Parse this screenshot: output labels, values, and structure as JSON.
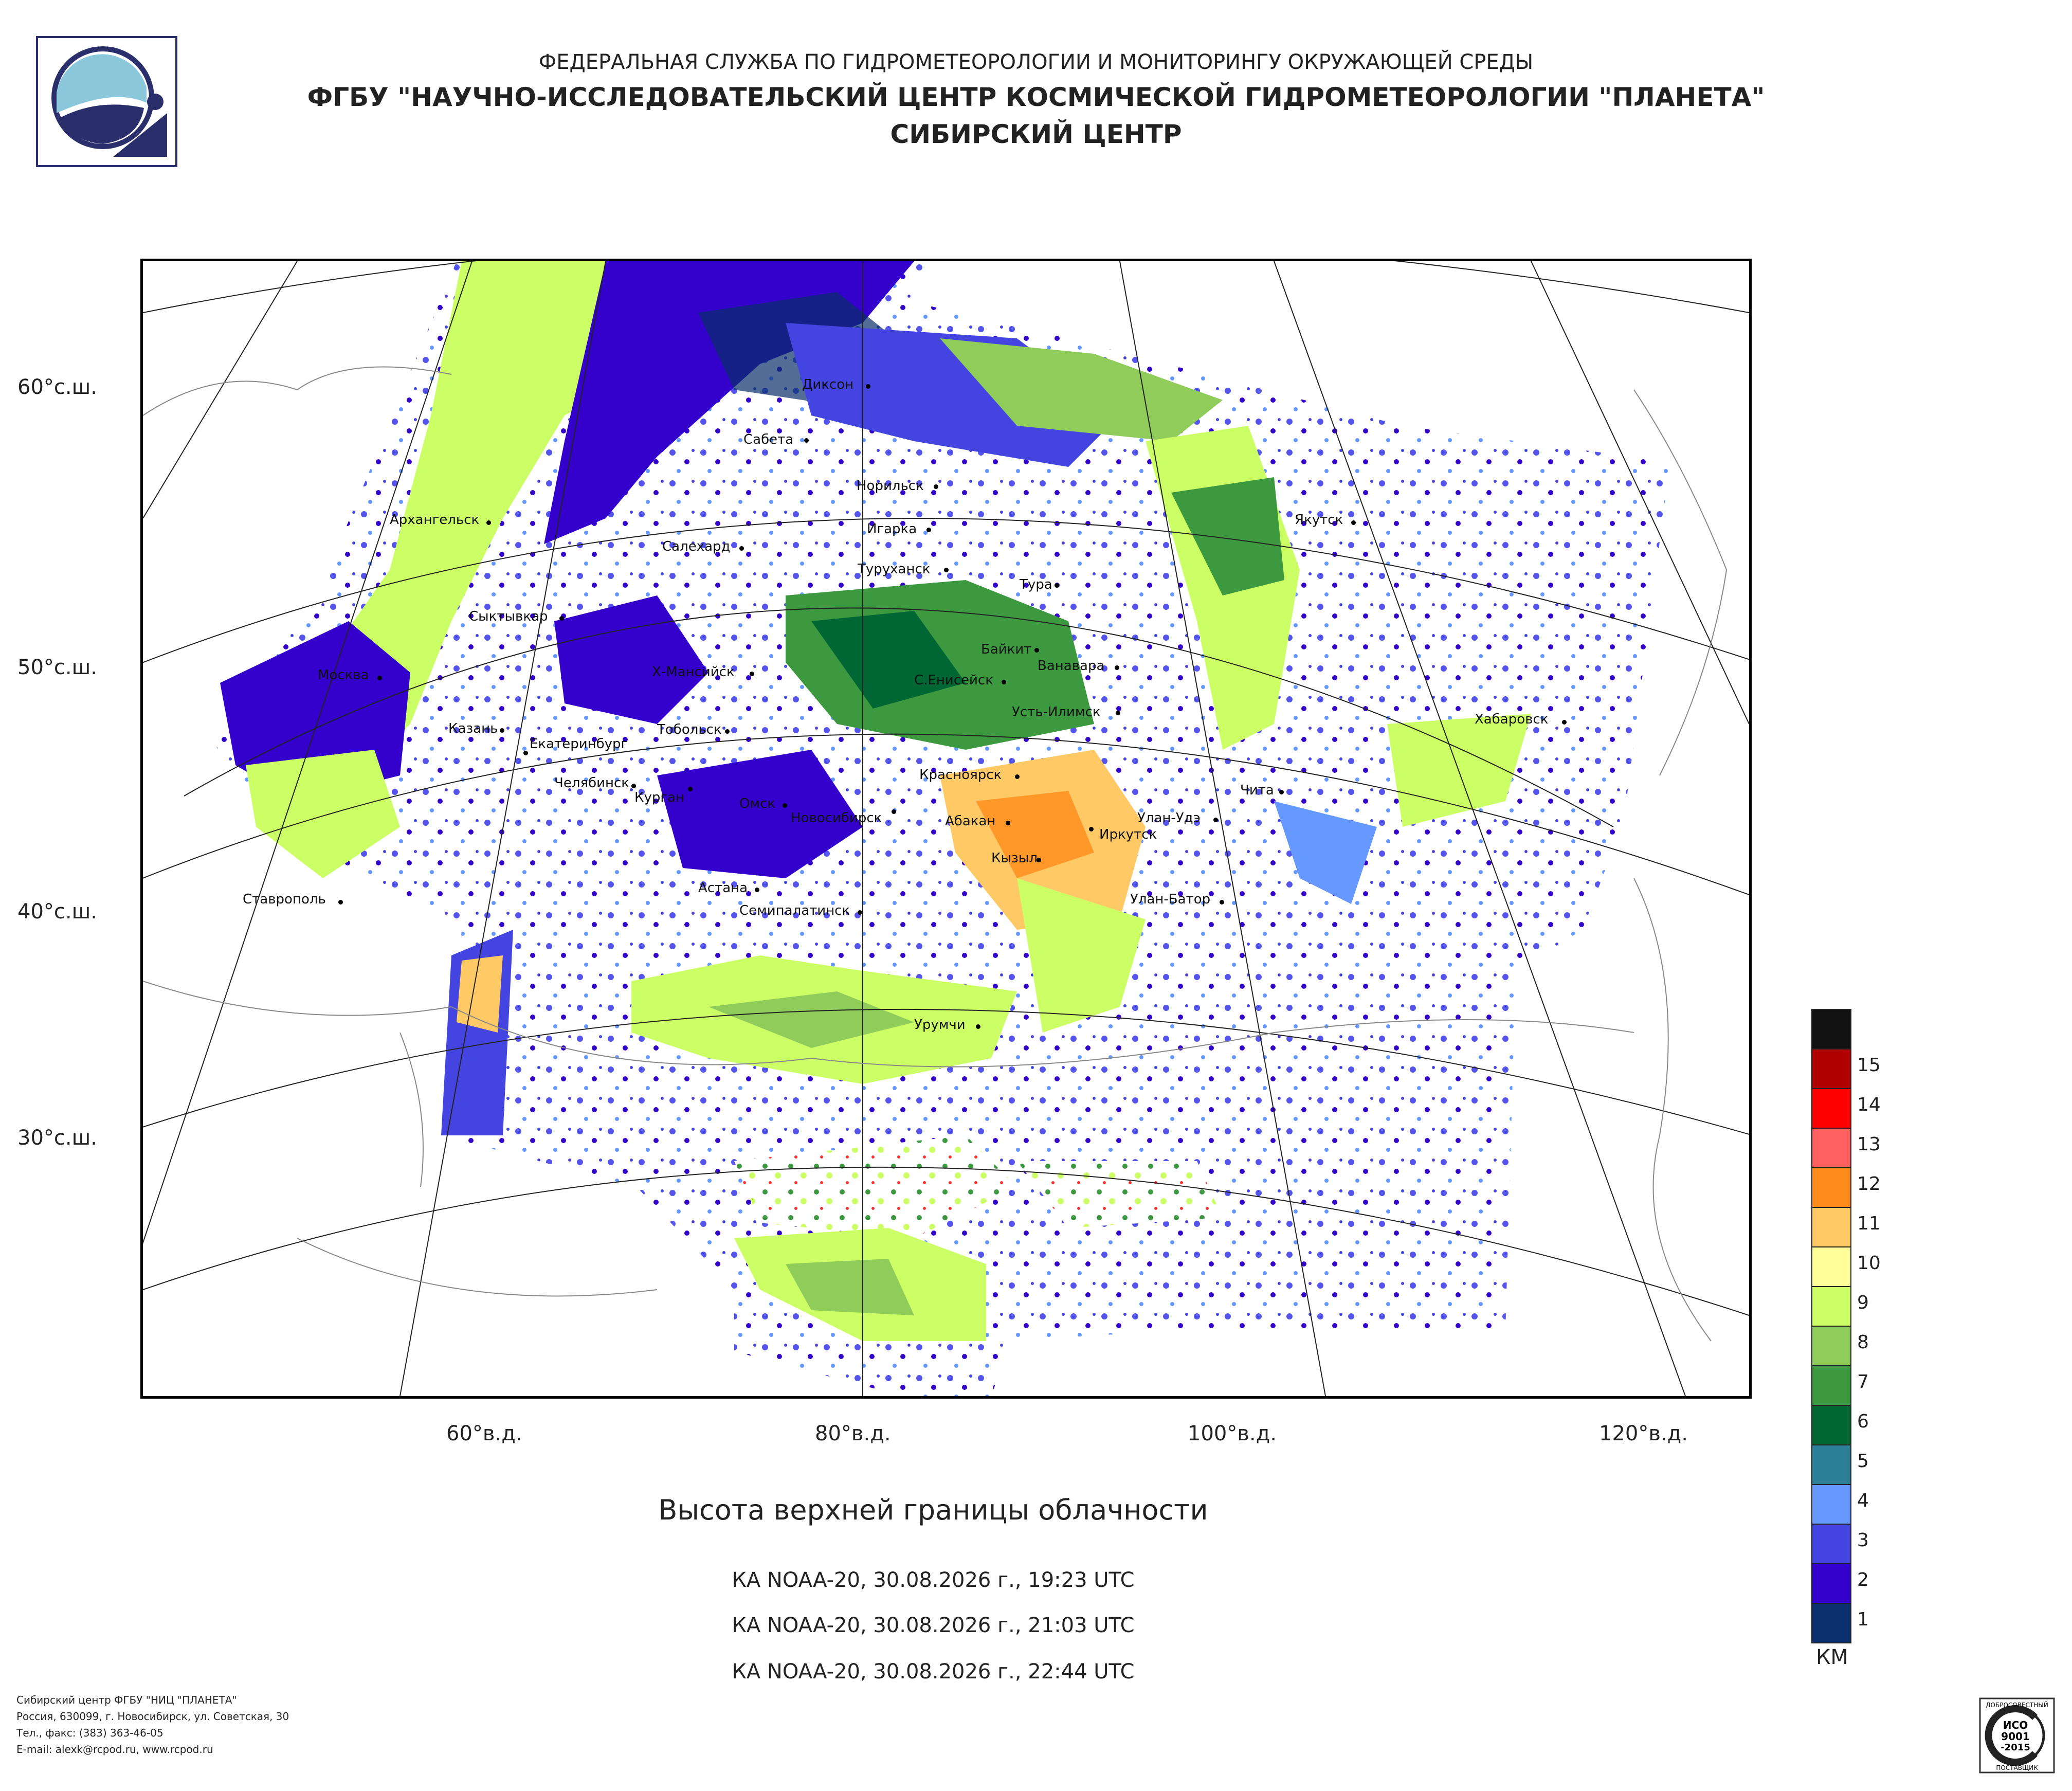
{
  "header": {
    "line1": "ФЕДЕРАЛЬНАЯ СЛУЖБА ПО ГИДРОМЕТЕОРОЛОГИИ И МОНИТОРИНГУ ОКРУЖАЮЩЕЙ СРЕДЫ",
    "line2": "ФГБУ \"НАУЧНО-ИССЛЕДОВАТЕЛЬСКИЙ ЦЕНТР КОСМИЧЕСКОЙ ГИДРОМЕТЕОРОЛОГИИ \"ПЛАНЕТА\"",
    "line3": "СИБИРСКИЙ ЦЕНТР"
  },
  "lat_labels": [
    "60°с.ш.",
    "50°с.ш.",
    "40°с.ш.",
    "30°с.ш."
  ],
  "lon_labels": [
    "60°в.д.",
    "80°в.д.",
    "100°в.д.",
    "120°в.д."
  ],
  "cities": [
    "Диксон",
    "Сабета",
    "Норильск",
    "Игарка",
    "Салехард",
    "Туруханск",
    "Архангельск",
    "Тура",
    "Якутск",
    "Сыктывкар",
    "Байкит",
    "Ванавара",
    "Х-Мансийск",
    "С.Енисейск",
    "Москва",
    "Усть-Илимск",
    "Казань",
    "Тобольск",
    "Екатеринбург",
    "Хабаровск",
    "Челябинск",
    "Курган",
    "Красноярск",
    "Чита",
    "Омск",
    "Новосибирск",
    "Абакан",
    "Улан-Удэ",
    "Иркутск",
    "Кызыл",
    "Астана",
    "Ставрополь",
    "Улан-Батор",
    "Семипалатинск",
    "Урумчи"
  ],
  "map": {
    "title": "Высота верхней границы облачности",
    "passes": [
      "КА NOAA-20, 30.08.2026 г., 19:23 UTC",
      "КА NOAA-20, 30.08.2026 г., 21:03 UTC",
      "КА NOAA-20, 30.08.2026 г., 22:44 UTC"
    ]
  },
  "legend": {
    "unit": "КМ",
    "items": [
      {
        "value": "",
        "color": "#111111"
      },
      {
        "value": "15",
        "color": "#b00000"
      },
      {
        "value": "14",
        "color": "#ff0000"
      },
      {
        "value": "13",
        "color": "#ff6060"
      },
      {
        "value": "12",
        "color": "#ff8c1a"
      },
      {
        "value": "11",
        "color": "#ffc966"
      },
      {
        "value": "10",
        "color": "#ffff99"
      },
      {
        "value": "9",
        "color": "#ccff66"
      },
      {
        "value": "8",
        "color": "#8fcc5a"
      },
      {
        "value": "7",
        "color": "#3d9940"
      },
      {
        "value": "6",
        "color": "#006633"
      },
      {
        "value": "5",
        "color": "#2e8099"
      },
      {
        "value": "4",
        "color": "#6699ff"
      },
      {
        "value": "3",
        "color": "#4444e0"
      },
      {
        "value": "2",
        "color": "#3300cc"
      },
      {
        "value": "1",
        "color": "#0a2f6b"
      }
    ]
  },
  "footer": {
    "line1": "Сибирский центр ФГБУ \"НИЦ \"ПЛАНЕТА\"",
    "line2": "Россия, 630099, г. Новосибирск, ул. Советская, 30",
    "line3": "Тел., факс: (383) 363-46-05",
    "line4": "E-mail: alexk@rcpod.ru, www.rcpod.ru"
  },
  "cert": {
    "l1": "ДОБРОСОВЕСТНЫЙ",
    "l2": "ИСО",
    "l3": "9001",
    "l4": "-2015",
    "l5": "ПОСТАВЩИК"
  }
}
